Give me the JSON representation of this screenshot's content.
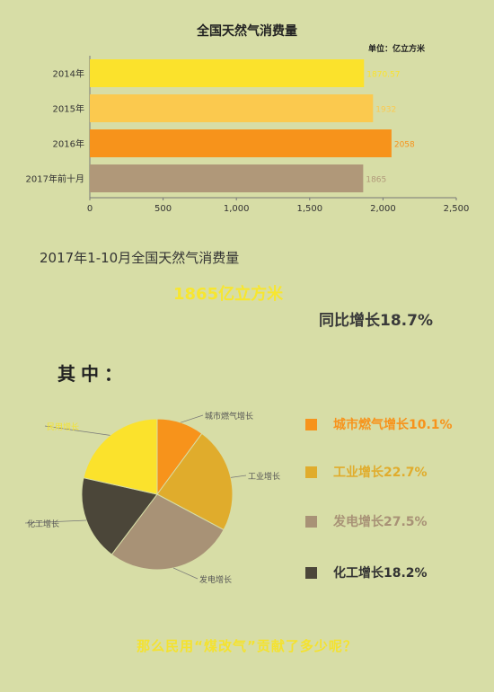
{
  "chart_data": [
    {
      "type": "bar",
      "orientation": "horizontal",
      "title": "全国天然气消费量",
      "unit_label": "单位：亿立方米",
      "categories": [
        "2014年",
        "2015年",
        "2016年",
        "2017年前十月"
      ],
      "values": [
        1870.57,
        1932,
        2058,
        1865
      ],
      "value_labels": [
        "1870.57",
        "1932",
        "2058",
        "1865"
      ],
      "colors": [
        "#fbe22c",
        "#fbc94e",
        "#f7931b",
        "#b09879"
      ],
      "xlim": [
        0,
        2500
      ],
      "x_ticks": [
        "0",
        "500",
        "1,000",
        "1,500",
        "2,000",
        "2,500"
      ],
      "x_tick_values": [
        0,
        500,
        1000,
        1500,
        2000,
        2500
      ],
      "grid": false
    },
    {
      "type": "pie",
      "title": "",
      "slices": [
        {
          "label": "城市燃气增长",
          "value": 10.1,
          "color": "#f7931b"
        },
        {
          "label": "工业增长",
          "value": 22.7,
          "color": "#e0ac2c"
        },
        {
          "label": "发电增长",
          "value": 27.5,
          "color": "#a89276"
        },
        {
          "label": "化工增长",
          "value": 18.2,
          "color": "#4b4639"
        },
        {
          "label": "民用增长",
          "value": 21.5,
          "color": "#fbe22c"
        }
      ]
    }
  ],
  "summary": {
    "title": "2017年1-10月全国天然气消费量",
    "total": "1865亿立方米",
    "growth": "同比增长18.7%"
  },
  "section_heading": "其中：",
  "legend": [
    {
      "text": "城市燃气增长10.1%",
      "color": "#f7931b"
    },
    {
      "text": "工业增长22.7%",
      "color": "#e0ac2c"
    },
    {
      "text": "发电增长27.5%",
      "color": "#a89276"
    },
    {
      "text": "化工增长18.2%",
      "color": "#4b4639"
    }
  ],
  "footer_question": "那么民用“煤改气”贡献了多少呢？"
}
